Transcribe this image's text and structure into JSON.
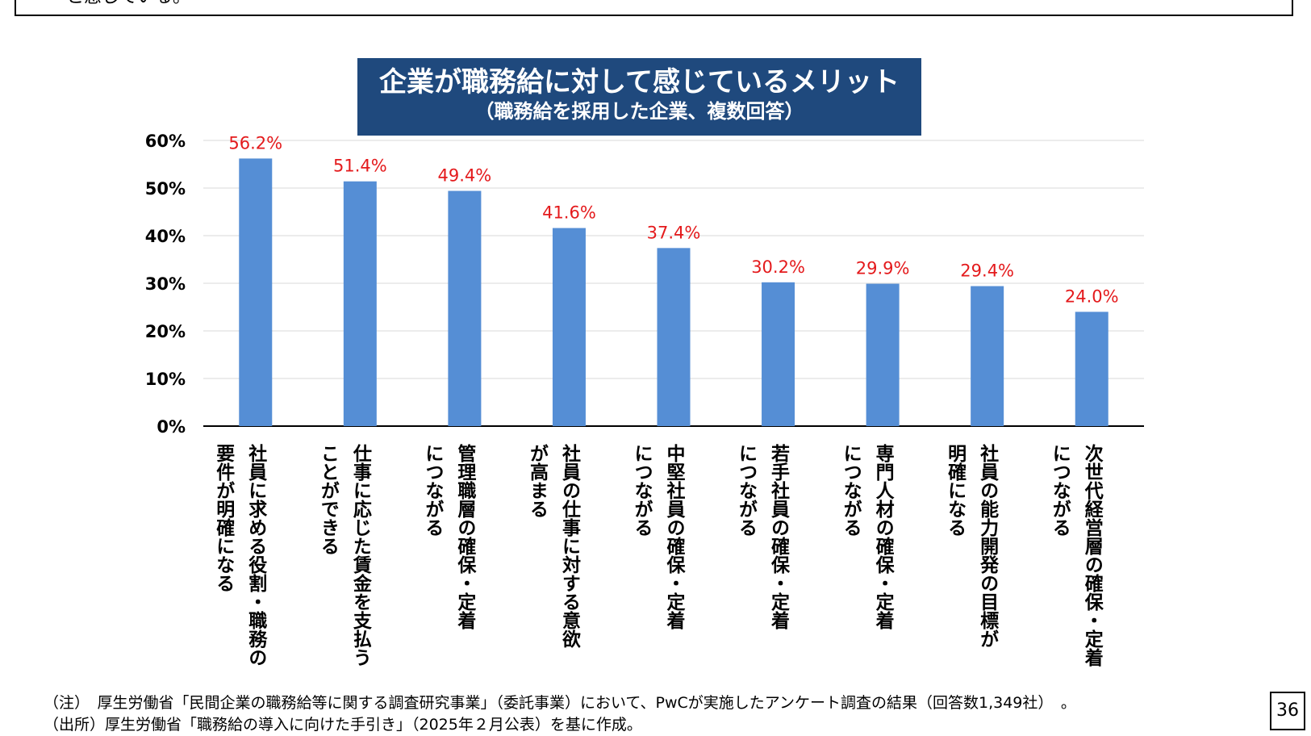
{
  "top_box_text": "と感じている。",
  "chart_data": {
    "type": "bar",
    "title": "企業が職務給に対して感じているメリット",
    "subtitle": "（職務給を採用した企業、複数回答）",
    "categories": [
      "社員に求める役割・職務の\n要件が明確になる",
      "仕事に応じた賃金を支払う\nことができる",
      "管理職層の確保・定着\nにつながる",
      "社員の仕事に対する意欲\nが高まる",
      "中堅社員の確保・定着\nにつながる",
      "若手社員の確保・定着\nにつながる",
      "専門人材の確保・定着\nにつながる",
      "社員の能力開発の目標が\n明確になる",
      "次世代経営層の確保・定着\nにつながる"
    ],
    "values": [
      56.2,
      51.4,
      49.4,
      41.6,
      37.4,
      30.2,
      29.9,
      29.4,
      24.0
    ],
    "data_labels": [
      "56.2%",
      "51.4%",
      "49.4%",
      "41.6%",
      "37.4%",
      "30.2%",
      "29.9%",
      "29.4%",
      "24.0%"
    ],
    "y_ticks": [
      "0%",
      "10%",
      "20%",
      "30%",
      "40%",
      "50%",
      "60%"
    ],
    "ylim": [
      0,
      60
    ],
    "grid": true,
    "bar_color": "#558ed5",
    "label_color": "#e41a1c"
  },
  "notes": [
    "（注）　厚生労働省「民間企業の職務給等に関する調査研究事業」（委託事業）において、PwCが実施したアンケート調査の結果（回答数1,349社）　。",
    "（出所）厚生労働省「職務給の導入に向けた手引き」（2025年２月公表）を基に作成。"
  ],
  "page_number": "36"
}
